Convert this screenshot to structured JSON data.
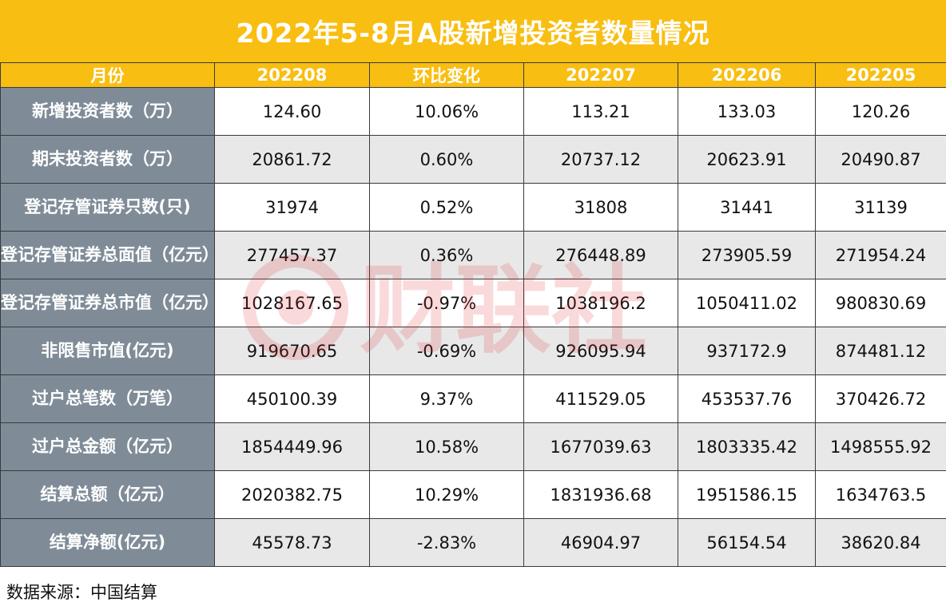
{
  "title": "2022年5-8月A股新增投资者数量情况",
  "header": {
    "row_label": "月份",
    "columns": [
      "202208",
      "环比变化",
      "202207",
      "202206",
      "202205"
    ]
  },
  "rows": [
    {
      "label": "新增投资者数（万）",
      "cells": [
        "124.60",
        "10.06%",
        "113.21",
        "133.03",
        "120.26"
      ]
    },
    {
      "label": "期末投资者数（万）",
      "cells": [
        "20861.72",
        "0.60%",
        "20737.12",
        "20623.91",
        "20490.87"
      ]
    },
    {
      "label": "登记存管证券只数(只)",
      "cells": [
        "31974",
        "0.52%",
        "31808",
        "31441",
        "31139"
      ]
    },
    {
      "label": "登记存管证券总面值（亿元）",
      "cells": [
        "277457.37",
        "0.36%",
        "276448.89",
        "273905.59",
        "271954.24"
      ]
    },
    {
      "label": "登记存管证券总市值（亿元）",
      "cells": [
        "1028167.65",
        "-0.97%",
        "1038196.2",
        "1050411.02",
        "980830.69"
      ]
    },
    {
      "label": "非限售市值(亿元)",
      "cells": [
        "919670.65",
        "-0.69%",
        "926095.94",
        "937172.9",
        "874481.12"
      ]
    },
    {
      "label": "过户总笔数（万笔）",
      "cells": [
        "450100.39",
        "9.37%",
        "411529.05",
        "453537.76",
        "370426.72"
      ]
    },
    {
      "label": "过户总金额（亿元）",
      "cells": [
        "1854449.96",
        "10.58%",
        "1677039.63",
        "1803335.42",
        "1498555.92"
      ]
    },
    {
      "label": "结算总额（亿元）",
      "cells": [
        "2020382.75",
        "10.29%",
        "1831936.68",
        "1951586.15",
        "1634763.5"
      ]
    },
    {
      "label": "结算净额(亿元)",
      "cells": [
        "45578.73",
        "-2.83%",
        "46904.97",
        "56154.54",
        "38620.84"
      ]
    }
  ],
  "source": "数据来源：中国结算",
  "watermark": "财联社",
  "colors": {
    "accent": "#f9be12",
    "row_header": "#7f8c98",
    "stripe": "#e8e8e8",
    "watermark": "#e0262b"
  }
}
